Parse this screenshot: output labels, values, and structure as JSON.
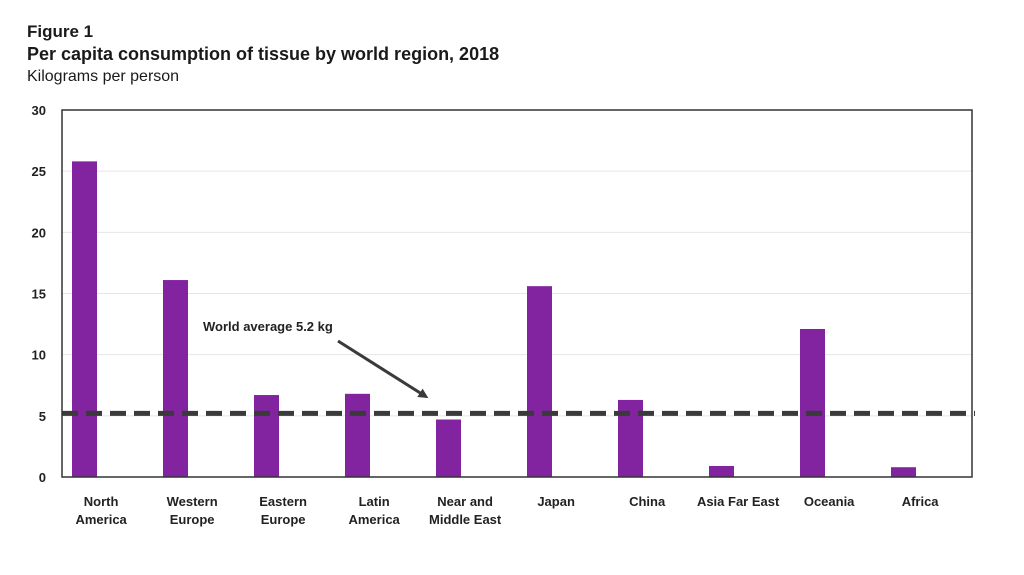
{
  "figure_label": "Figure 1",
  "chart_data": {
    "type": "bar",
    "title": "Per capita consumption of tissue by world region, 2018",
    "subtitle": "Kilograms per person",
    "categories": [
      [
        "North",
        "America"
      ],
      [
        "Western",
        "Europe"
      ],
      [
        "Eastern",
        "Europe"
      ],
      [
        "Latin",
        "America"
      ],
      [
        "Near and",
        "Middle East"
      ],
      [
        "Japan"
      ],
      [
        "China"
      ],
      [
        "Asia Far East"
      ],
      [
        "Oceania"
      ],
      [
        "Africa"
      ]
    ],
    "values": [
      25.8,
      16.1,
      6.7,
      6.8,
      4.7,
      15.6,
      6.3,
      0.9,
      12.1,
      0.8
    ],
    "ylim": [
      0,
      30
    ],
    "yticks": [
      0,
      5,
      10,
      15,
      20,
      25,
      30
    ],
    "grid": true,
    "colors": {
      "bar": "#8224a0",
      "reference_line": "#3a3a3a"
    },
    "reference_line": {
      "value": 5.2,
      "label": "World average 5.2 kg"
    }
  }
}
